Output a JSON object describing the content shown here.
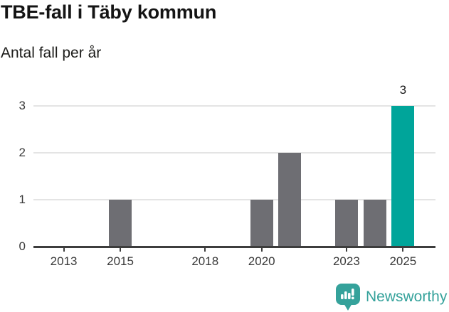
{
  "header": {
    "title": "TBE-fall i Täby kommun",
    "subtitle": "Antal fall per år"
  },
  "footer": {
    "brand": "Newsworthy",
    "logo_icon": "bar-chart-speech-bubble-icon"
  },
  "colors": {
    "bar_default": "#6e6e73",
    "bar_highlight": "#00a59a",
    "brand_teal": "#35a29b",
    "gridline": "#e4e4e4",
    "axis": "#3d3d3d",
    "title_text": "#141414",
    "axis_label_text": "#3a3a3a"
  },
  "chart_data": {
    "type": "bar",
    "title": "TBE-fall i Täby kommun",
    "subtitle": "Antal fall per år",
    "xlabel": "",
    "ylabel": "Antal fall per år",
    "x": [
      2015,
      2020,
      2021,
      2023,
      2024,
      2025
    ],
    "values": [
      1,
      1,
      2,
      1,
      1,
      3
    ],
    "highlight_x": 2025,
    "data_labels": [
      {
        "x": 2025,
        "text": "3"
      }
    ],
    "x_ticks": [
      2013,
      2015,
      2018,
      2020,
      2023,
      2025
    ],
    "y_ticks": [
      0,
      1,
      2,
      3
    ],
    "ylim": [
      0,
      3
    ],
    "grid": true,
    "legend": false
  }
}
